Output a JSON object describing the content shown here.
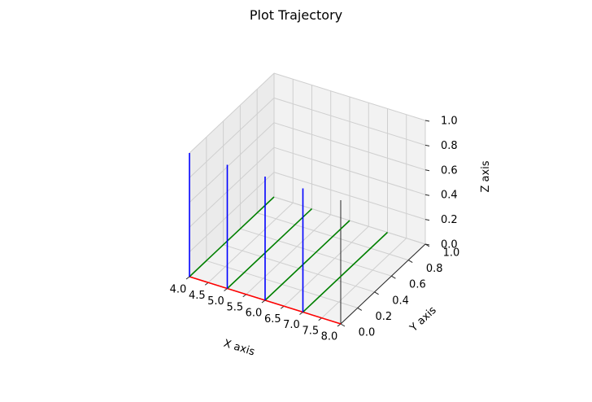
{
  "chart_data": {
    "type": "line",
    "projection": "3d",
    "title": "Plot Trajectory",
    "xlabel": "X axis",
    "ylabel": "Y axis",
    "zlabel": "Z axis",
    "xlim": [
      4.0,
      8.0
    ],
    "ylim": [
      0.0,
      1.0
    ],
    "zlim": [
      0.0,
      1.0
    ],
    "x_ticks": [
      "4.0",
      "4.5",
      "5.0",
      "5.5",
      "6.0",
      "6.5",
      "7.0",
      "7.5",
      "8.0"
    ],
    "y_ticks": [
      "0.0",
      "0.2",
      "0.4",
      "0.6",
      "0.8",
      "1.0"
    ],
    "z_ticks": [
      "0.0",
      "0.2",
      "0.4",
      "0.6",
      "0.8",
      "1.0"
    ],
    "grid": true,
    "series": [
      {
        "color": "#ff0000",
        "x": [
          4.0,
          8.0
        ],
        "y": [
          0.0,
          0.0
        ],
        "z": [
          0.0,
          0.0
        ]
      },
      {
        "color": "#008000",
        "x": [
          4.0,
          4.0
        ],
        "y": [
          0.0,
          1.0
        ],
        "z": [
          0.0,
          0.0
        ]
      },
      {
        "color": "#008000",
        "x": [
          5.0,
          5.0
        ],
        "y": [
          0.0,
          1.0
        ],
        "z": [
          0.0,
          0.0
        ]
      },
      {
        "color": "#008000",
        "x": [
          6.0,
          6.0
        ],
        "y": [
          0.0,
          1.0
        ],
        "z": [
          0.0,
          0.0
        ]
      },
      {
        "color": "#008000",
        "x": [
          7.0,
          7.0
        ],
        "y": [
          0.0,
          1.0
        ],
        "z": [
          0.0,
          0.0
        ]
      },
      {
        "color": "#0000ff",
        "x": [
          4.0,
          4.0
        ],
        "y": [
          0.0,
          0.0
        ],
        "z": [
          0.0,
          1.0
        ]
      },
      {
        "color": "#0000ff",
        "x": [
          5.0,
          5.0
        ],
        "y": [
          0.0,
          0.0
        ],
        "z": [
          0.0,
          1.0
        ]
      },
      {
        "color": "#0000ff",
        "x": [
          6.0,
          6.0
        ],
        "y": [
          0.0,
          0.0
        ],
        "z": [
          0.0,
          1.0
        ]
      },
      {
        "color": "#0000ff",
        "x": [
          7.0,
          7.0
        ],
        "y": [
          0.0,
          0.0
        ],
        "z": [
          0.0,
          1.0
        ]
      }
    ]
  }
}
